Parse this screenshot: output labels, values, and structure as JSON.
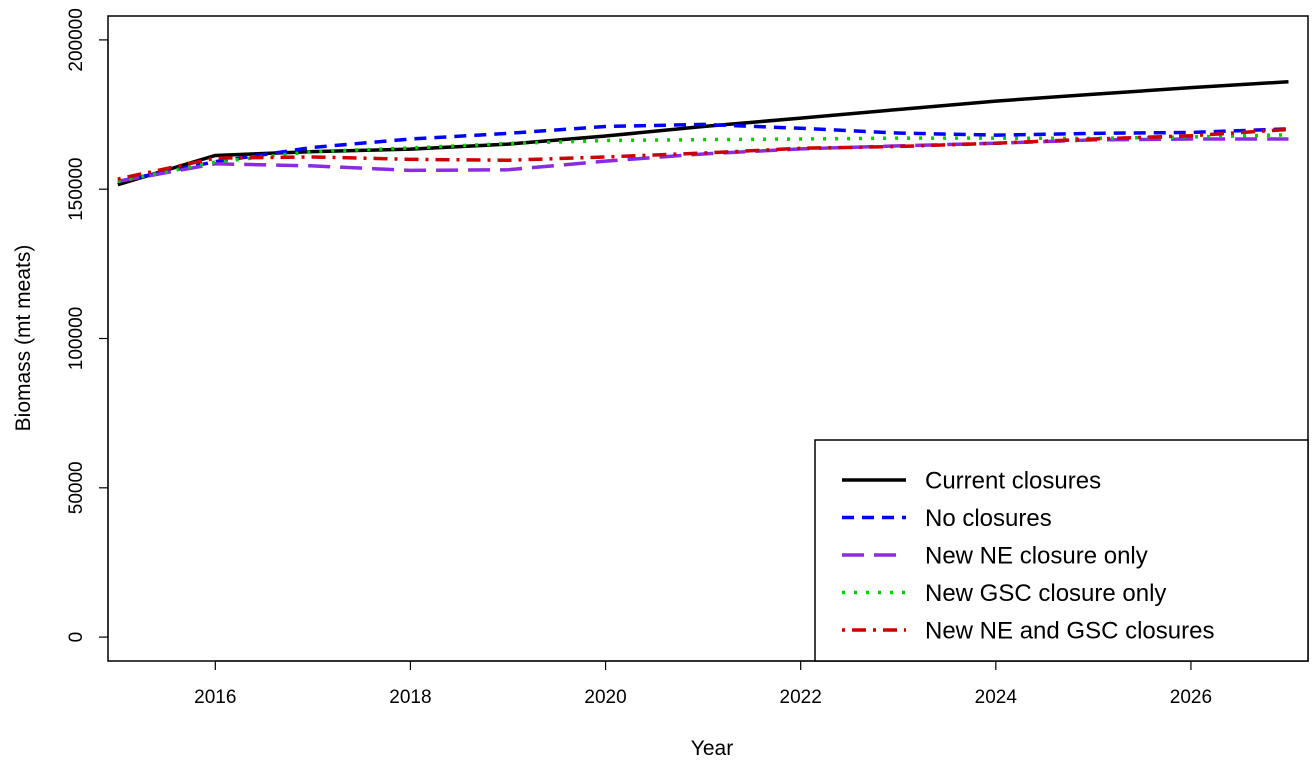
{
  "chart_data": {
    "type": "line",
    "title": "",
    "xlabel": "Year",
    "ylabel": "Biomass (mt meats)",
    "xlim": [
      2014.9,
      2027.2
    ],
    "ylim": [
      -8000,
      208000
    ],
    "x_ticks": [
      2016,
      2018,
      2020,
      2022,
      2024,
      2026
    ],
    "y_ticks": [
      0,
      50000,
      100000,
      150000,
      200000
    ],
    "grid": false,
    "legend_position": "bottom-right",
    "x": [
      2015,
      2016,
      2017,
      2018,
      2019,
      2020,
      2021,
      2022,
      2023,
      2024,
      2025,
      2026,
      2027
    ],
    "series": [
      {
        "name": "Current closures",
        "color": "#000000",
        "style": "solid",
        "values": [
          151500,
          161300,
          162600,
          163400,
          165100,
          167800,
          171000,
          173800,
          176700,
          179500,
          181800,
          184000,
          186000
        ]
      },
      {
        "name": "No closures",
        "color": "#0000ff",
        "style": "dashed",
        "values": [
          152600,
          159200,
          164000,
          166800,
          168700,
          171000,
          171700,
          170400,
          168800,
          168100,
          168700,
          169000,
          170200
        ]
      },
      {
        "name": "New NE closure only",
        "color": "#8a2be2",
        "style": "longdash",
        "values": [
          152600,
          158500,
          157800,
          156300,
          156500,
          159400,
          161800,
          163500,
          164500,
          165400,
          166500,
          166800,
          166800
        ]
      },
      {
        "name": "New GSC closure only",
        "color": "#00cd00",
        "style": "dotted",
        "values": [
          152600,
          159100,
          162600,
          163800,
          165300,
          166300,
          166600,
          166800,
          167100,
          167100,
          167000,
          167500,
          168200
        ]
      },
      {
        "name": "New NE and GSC closures",
        "color": "#cd0000",
        "style": "dotdash",
        "values": [
          153400,
          160400,
          160800,
          160000,
          159700,
          160800,
          162100,
          163700,
          164300,
          165400,
          166800,
          167900,
          170000
        ]
      }
    ]
  }
}
